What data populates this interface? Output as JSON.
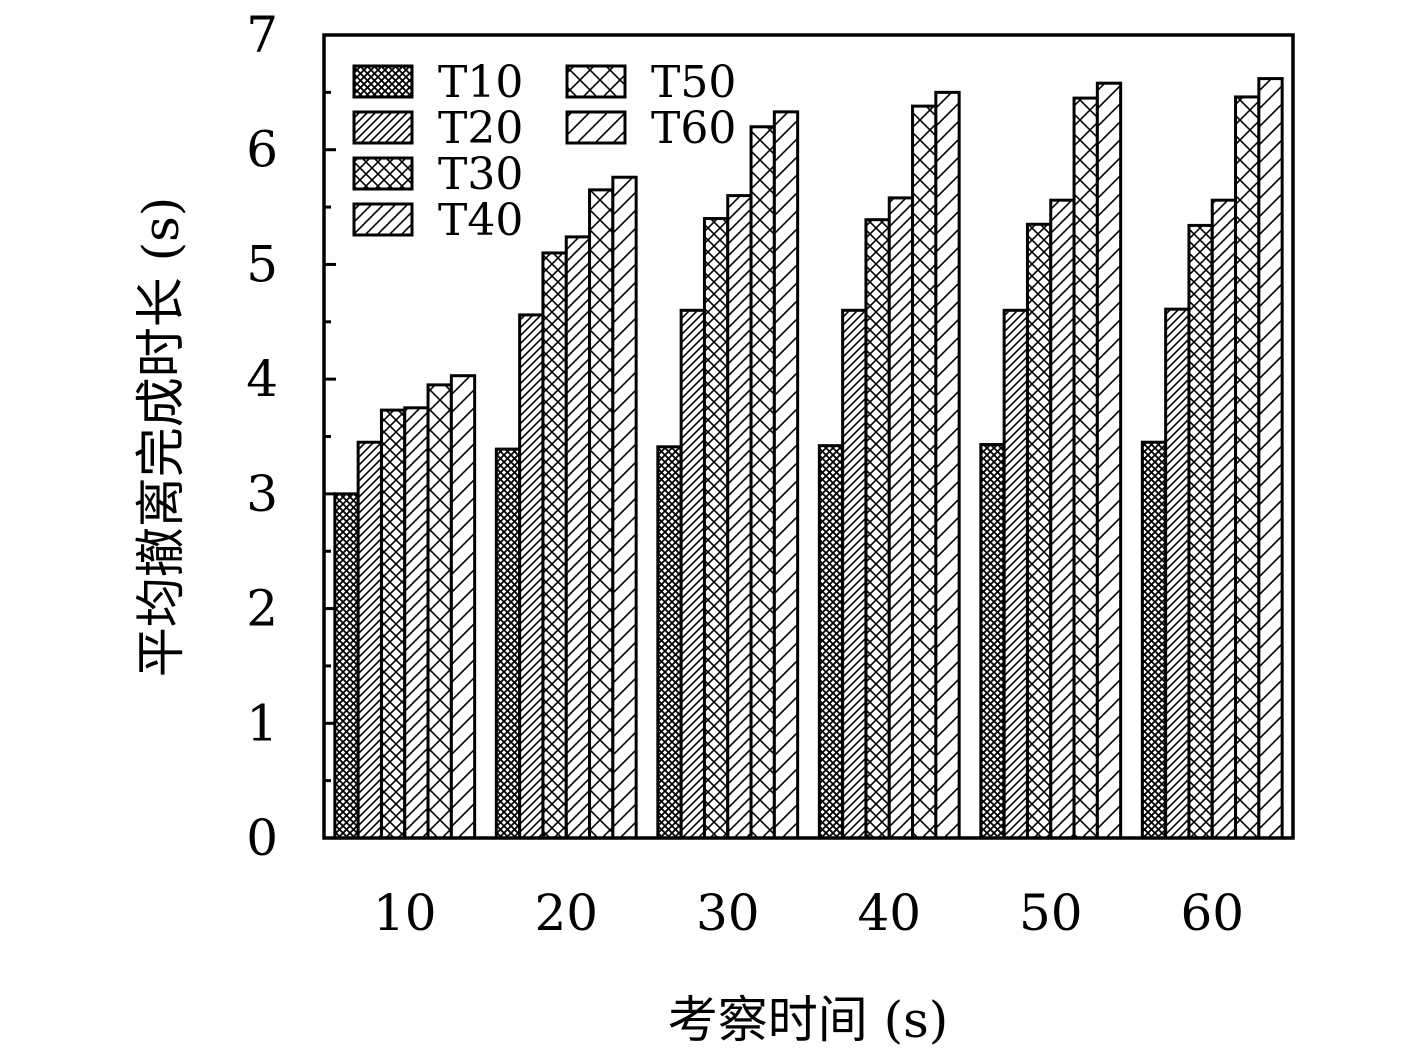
{
  "chart_data": {
    "type": "bar",
    "xlabel": "考察时间 (s)",
    "ylabel": "平均撤离完成时长 (s)",
    "categories": [
      "10",
      "20",
      "30",
      "40",
      "50",
      "60"
    ],
    "ylim": [
      0,
      7
    ],
    "yticks": [
      "0",
      "1",
      "2",
      "3",
      "4",
      "5",
      "6",
      "7"
    ],
    "grid": false,
    "legend_position": "top-left",
    "series": [
      {
        "name": "T10",
        "pattern": "dense-crosshatch",
        "values": [
          3.0,
          3.39,
          3.41,
          3.42,
          3.43,
          3.45
        ]
      },
      {
        "name": "T20",
        "pattern": "dense-diagonal",
        "values": [
          3.45,
          4.56,
          4.6,
          4.6,
          4.6,
          4.61
        ]
      },
      {
        "name": "T30",
        "pattern": "crosshatch",
        "values": [
          3.73,
          5.1,
          5.4,
          5.39,
          5.35,
          5.34
        ]
      },
      {
        "name": "T40",
        "pattern": "diagonal",
        "values": [
          3.75,
          5.24,
          5.6,
          5.58,
          5.56,
          5.56
        ]
      },
      {
        "name": "T50",
        "pattern": "wide-crosshatch",
        "values": [
          3.95,
          5.65,
          6.2,
          6.38,
          6.45,
          6.46
        ]
      },
      {
        "name": "T60",
        "pattern": "wide-diagonal",
        "values": [
          4.03,
          5.76,
          6.33,
          6.5,
          6.58,
          6.62
        ]
      }
    ],
    "colors": {
      "bar_stroke": "#000000",
      "bar_fill": "#ffffff",
      "hatch": "#000000"
    }
  }
}
